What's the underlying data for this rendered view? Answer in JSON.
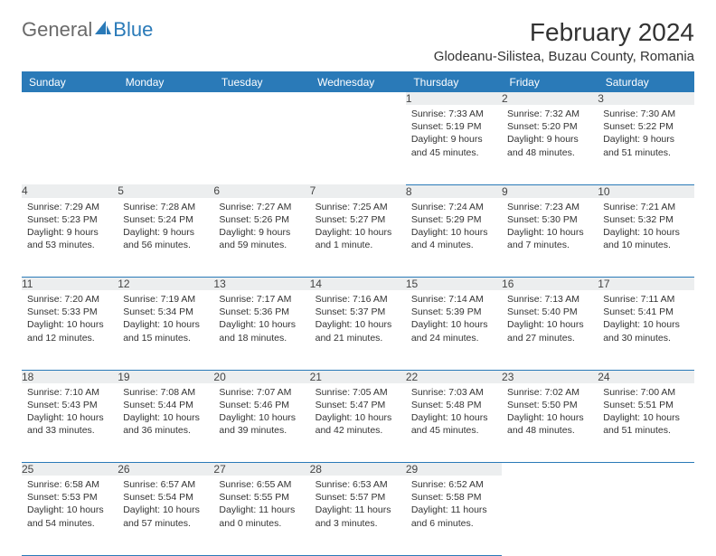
{
  "brand": {
    "part1": "General",
    "part2": "Blue"
  },
  "title": "February 2024",
  "location": "Glodeanu-Silistea, Buzau County, Romania",
  "colors": {
    "header_bg": "#2a7ab8",
    "header_text": "#ffffff",
    "daynum_bg": "#eceeef",
    "rule": "#2a7ab8",
    "page_bg": "#ffffff",
    "body_text": "#333333"
  },
  "day_labels": [
    "Sunday",
    "Monday",
    "Tuesday",
    "Wednesday",
    "Thursday",
    "Friday",
    "Saturday"
  ],
  "grid": [
    [
      null,
      null,
      null,
      null,
      {
        "n": "1",
        "sr": "7:33 AM",
        "ss": "5:19 PM",
        "dl": "9 hours and 45 minutes."
      },
      {
        "n": "2",
        "sr": "7:32 AM",
        "ss": "5:20 PM",
        "dl": "9 hours and 48 minutes."
      },
      {
        "n": "3",
        "sr": "7:30 AM",
        "ss": "5:22 PM",
        "dl": "9 hours and 51 minutes."
      }
    ],
    [
      {
        "n": "4",
        "sr": "7:29 AM",
        "ss": "5:23 PM",
        "dl": "9 hours and 53 minutes."
      },
      {
        "n": "5",
        "sr": "7:28 AM",
        "ss": "5:24 PM",
        "dl": "9 hours and 56 minutes."
      },
      {
        "n": "6",
        "sr": "7:27 AM",
        "ss": "5:26 PM",
        "dl": "9 hours and 59 minutes."
      },
      {
        "n": "7",
        "sr": "7:25 AM",
        "ss": "5:27 PM",
        "dl": "10 hours and 1 minute."
      },
      {
        "n": "8",
        "sr": "7:24 AM",
        "ss": "5:29 PM",
        "dl": "10 hours and 4 minutes."
      },
      {
        "n": "9",
        "sr": "7:23 AM",
        "ss": "5:30 PM",
        "dl": "10 hours and 7 minutes."
      },
      {
        "n": "10",
        "sr": "7:21 AM",
        "ss": "5:32 PM",
        "dl": "10 hours and 10 minutes."
      }
    ],
    [
      {
        "n": "11",
        "sr": "7:20 AM",
        "ss": "5:33 PM",
        "dl": "10 hours and 12 minutes."
      },
      {
        "n": "12",
        "sr": "7:19 AM",
        "ss": "5:34 PM",
        "dl": "10 hours and 15 minutes."
      },
      {
        "n": "13",
        "sr": "7:17 AM",
        "ss": "5:36 PM",
        "dl": "10 hours and 18 minutes."
      },
      {
        "n": "14",
        "sr": "7:16 AM",
        "ss": "5:37 PM",
        "dl": "10 hours and 21 minutes."
      },
      {
        "n": "15",
        "sr": "7:14 AM",
        "ss": "5:39 PM",
        "dl": "10 hours and 24 minutes."
      },
      {
        "n": "16",
        "sr": "7:13 AM",
        "ss": "5:40 PM",
        "dl": "10 hours and 27 minutes."
      },
      {
        "n": "17",
        "sr": "7:11 AM",
        "ss": "5:41 PM",
        "dl": "10 hours and 30 minutes."
      }
    ],
    [
      {
        "n": "18",
        "sr": "7:10 AM",
        "ss": "5:43 PM",
        "dl": "10 hours and 33 minutes."
      },
      {
        "n": "19",
        "sr": "7:08 AM",
        "ss": "5:44 PM",
        "dl": "10 hours and 36 minutes."
      },
      {
        "n": "20",
        "sr": "7:07 AM",
        "ss": "5:46 PM",
        "dl": "10 hours and 39 minutes."
      },
      {
        "n": "21",
        "sr": "7:05 AM",
        "ss": "5:47 PM",
        "dl": "10 hours and 42 minutes."
      },
      {
        "n": "22",
        "sr": "7:03 AM",
        "ss": "5:48 PM",
        "dl": "10 hours and 45 minutes."
      },
      {
        "n": "23",
        "sr": "7:02 AM",
        "ss": "5:50 PM",
        "dl": "10 hours and 48 minutes."
      },
      {
        "n": "24",
        "sr": "7:00 AM",
        "ss": "5:51 PM",
        "dl": "10 hours and 51 minutes."
      }
    ],
    [
      {
        "n": "25",
        "sr": "6:58 AM",
        "ss": "5:53 PM",
        "dl": "10 hours and 54 minutes."
      },
      {
        "n": "26",
        "sr": "6:57 AM",
        "ss": "5:54 PM",
        "dl": "10 hours and 57 minutes."
      },
      {
        "n": "27",
        "sr": "6:55 AM",
        "ss": "5:55 PM",
        "dl": "11 hours and 0 minutes."
      },
      {
        "n": "28",
        "sr": "6:53 AM",
        "ss": "5:57 PM",
        "dl": "11 hours and 3 minutes."
      },
      {
        "n": "29",
        "sr": "6:52 AM",
        "ss": "5:58 PM",
        "dl": "11 hours and 6 minutes."
      },
      null,
      null
    ]
  ],
  "labels": {
    "sunrise": "Sunrise:",
    "sunset": "Sunset:",
    "daylight": "Daylight:"
  }
}
